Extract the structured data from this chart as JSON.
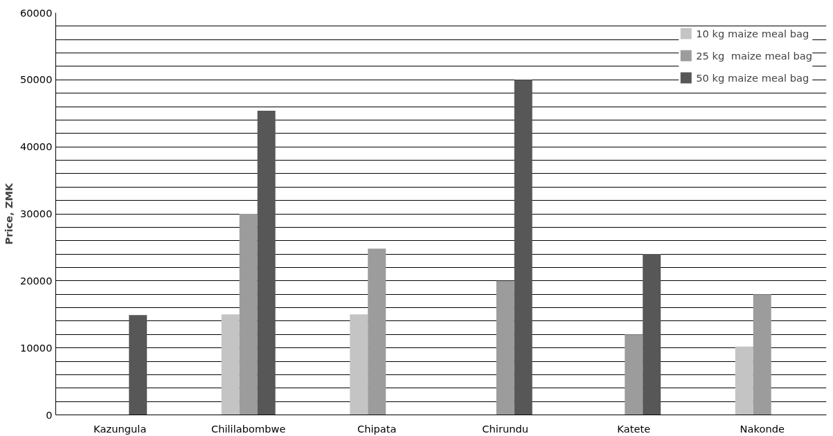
{
  "chart_data": {
    "type": "bar",
    "ylabel": "Price, ZMK",
    "categories": [
      "Kazungula",
      "Chililabombwe",
      "Chipata",
      "Chirundu",
      "Katete",
      "Nakonde"
    ],
    "series": [
      {
        "name": "10 kg maize meal bag",
        "color": "#c4c4c4",
        "values": [
          null,
          15000,
          15000,
          null,
          null,
          10200
        ]
      },
      {
        "name": "25 kg  maize meal bag",
        "color": "#9c9c9c",
        "values": [
          null,
          30000,
          24800,
          20000,
          12000,
          18000
        ]
      },
      {
        "name": "50 kg maize meal bag",
        "color": "#575757",
        "values": [
          14900,
          45400,
          null,
          50000,
          24000,
          null
        ]
      }
    ],
    "ylim": [
      0,
      60000
    ],
    "yticks": [
      0,
      {
        "value": 2000,
        "label": null
      },
      {
        "value": 4000,
        "label": null
      },
      {
        "value": 6000,
        "label": null
      },
      {
        "value": 8000,
        "label": null
      },
      10000,
      {
        "value": 12000,
        "label": null
      },
      {
        "value": 14000,
        "label": null
      },
      {
        "value": 16000,
        "label": null
      },
      {
        "value": 18000,
        "label": null
      },
      20000,
      {
        "value": 22000,
        "label": null
      },
      {
        "value": 24000,
        "label": null
      },
      {
        "value": 26000,
        "label": null
      },
      {
        "value": 28000,
        "label": null
      },
      30000,
      {
        "value": 32000,
        "label": null
      },
      {
        "value": 34000,
        "label": null
      },
      {
        "value": 36000,
        "label": null
      },
      {
        "value": 38000,
        "label": null
      },
      40000,
      {
        "value": 42000,
        "label": null
      },
      {
        "value": 44000,
        "label": null
      },
      {
        "value": 46000,
        "label": null
      },
      {
        "value": 48000,
        "label": null
      },
      50000,
      {
        "value": 52000,
        "label": null
      },
      {
        "value": 54000,
        "label": null
      },
      {
        "value": 56000,
        "label": null
      },
      {
        "value": 58000,
        "label": null
      },
      60000
    ],
    "grid": "y",
    "legend": "top right"
  }
}
